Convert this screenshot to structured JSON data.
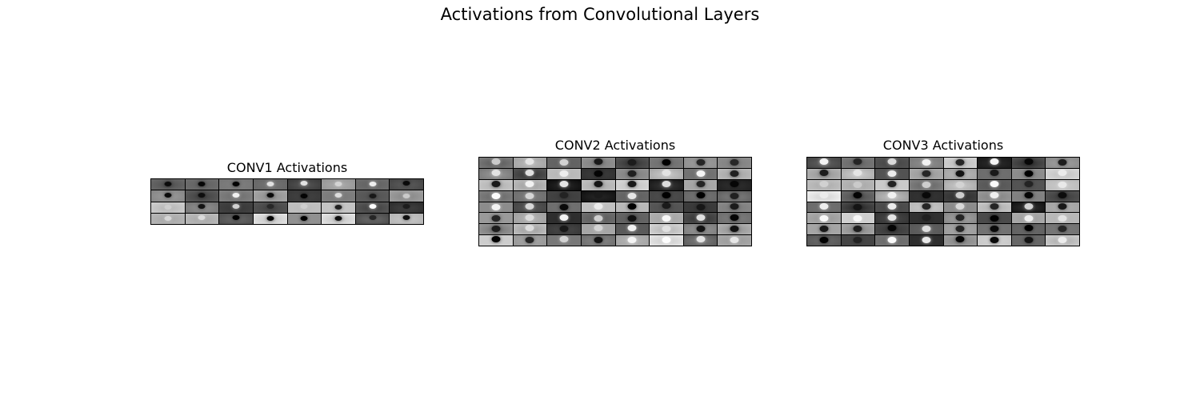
{
  "figure": {
    "suptitle": "Activations from Convolutional Layers"
  },
  "chart_data": [
    {
      "type": "heatmap",
      "title": "CONV1 Activations",
      "colormap": "gray",
      "grid": {
        "rows": 4,
        "cols": 8
      },
      "channels": 32,
      "axes_visible": false
    },
    {
      "type": "heatmap",
      "title": "CONV2 Activations",
      "colormap": "gray",
      "grid": {
        "rows": 8,
        "cols": 8
      },
      "channels": 64,
      "axes_visible": false
    },
    {
      "type": "heatmap",
      "title": "CONV3 Activations",
      "colormap": "gray",
      "grid": {
        "rows": 8,
        "cols": 8
      },
      "channels": 64,
      "axes_visible": false
    }
  ]
}
